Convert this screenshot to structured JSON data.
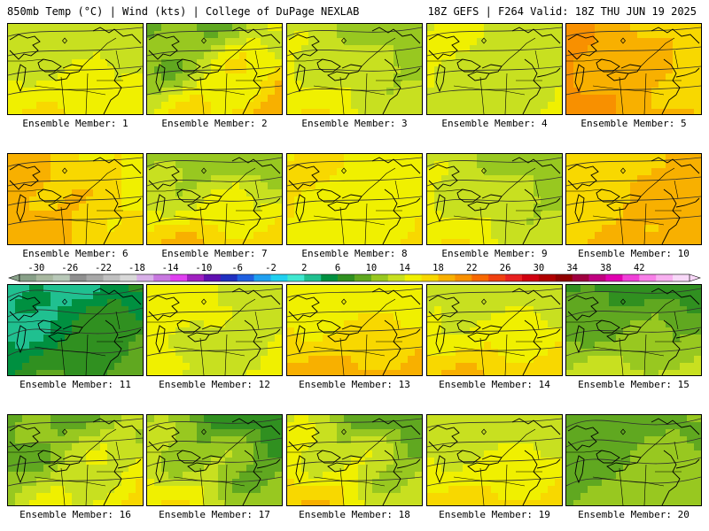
{
  "header": {
    "left": "850mb Temp (°C) | Wind (kts) | College of DuPage NEXLAB",
    "right": "18Z GEFS | F264 Valid: 18Z THU JUN 19 2025"
  },
  "panel_label_prefix": "Ensemble Member: ",
  "members": [
    {
      "n": "1",
      "temp": [
        12,
        16
      ],
      "grad": "warmS"
    },
    {
      "n": "2",
      "temp": [
        8,
        20
      ],
      "grad": "coolNW"
    },
    {
      "n": "3",
      "temp": [
        10,
        16
      ],
      "grad": "coolNE"
    },
    {
      "n": "4",
      "temp": [
        12,
        15
      ],
      "grad": "flat"
    },
    {
      "n": "5",
      "temp": [
        16,
        20
      ],
      "grad": "warmW"
    },
    {
      "n": "6",
      "temp": [
        14,
        19
      ],
      "grad": "warmW"
    },
    {
      "n": "7",
      "temp": [
        10,
        18
      ],
      "grad": "coolN"
    },
    {
      "n": "8",
      "temp": [
        14,
        17
      ],
      "grad": "flat"
    },
    {
      "n": "9",
      "temp": [
        10,
        16
      ],
      "grad": "coolNE"
    },
    {
      "n": "10",
      "temp": [
        16,
        20
      ],
      "grad": "warmE"
    },
    {
      "n": "11",
      "temp": [
        2,
        10
      ],
      "grad": "cool"
    },
    {
      "n": "12",
      "temp": [
        12,
        16
      ],
      "grad": "flat"
    },
    {
      "n": "13",
      "temp": [
        14,
        19
      ],
      "grad": "warmS"
    },
    {
      "n": "14",
      "temp": [
        12,
        18
      ],
      "grad": "warmS"
    },
    {
      "n": "15",
      "temp": [
        7,
        13
      ],
      "grad": "coolN"
    },
    {
      "n": "16",
      "temp": [
        8,
        17
      ],
      "grad": "warmSE"
    },
    {
      "n": "17",
      "temp": [
        6,
        16
      ],
      "grad": "coolNE"
    },
    {
      "n": "18",
      "temp": [
        8,
        18
      ],
      "grad": "warmSW"
    },
    {
      "n": "19",
      "temp": [
        12,
        17
      ],
      "grad": "warmS"
    },
    {
      "n": "20",
      "temp": [
        8,
        12
      ],
      "grad": "cool"
    }
  ],
  "colorbar": {
    "labels": [
      "-30",
      "-26",
      "-22",
      "-18",
      "-14",
      "-10",
      "-6",
      "-2",
      "2",
      "6",
      "10",
      "14",
      "18",
      "22",
      "26",
      "30",
      "34",
      "38",
      "42"
    ],
    "colors": [
      "#88a088",
      "#a8b8a0",
      "#b8c8b8",
      "#909090",
      "#a8a8a8",
      "#c0c0c0",
      "#d8d8d8",
      "#d8b0e8",
      "#c878e0",
      "#e040f0",
      "#a020c0",
      "#6010b0",
      "#2030c0",
      "#2060e0",
      "#20a0f0",
      "#20d0f0",
      "#40e8d0",
      "#20c090",
      "#009040",
      "#309020",
      "#60a820",
      "#98c820",
      "#c8e020",
      "#f0f000",
      "#f8d800",
      "#f8b000",
      "#f89000",
      "#f86800",
      "#f04010",
      "#e82020",
      "#d00010",
      "#b00000",
      "#900000",
      "#a00040",
      "#c00080",
      "#e000b0",
      "#f040d8",
      "#f880e8",
      "#f8b0f0",
      "#f8d8f8"
    ]
  },
  "colors": {
    "outline": "#000000",
    "height_contour": "#303030",
    "background": "#ffffff"
  }
}
